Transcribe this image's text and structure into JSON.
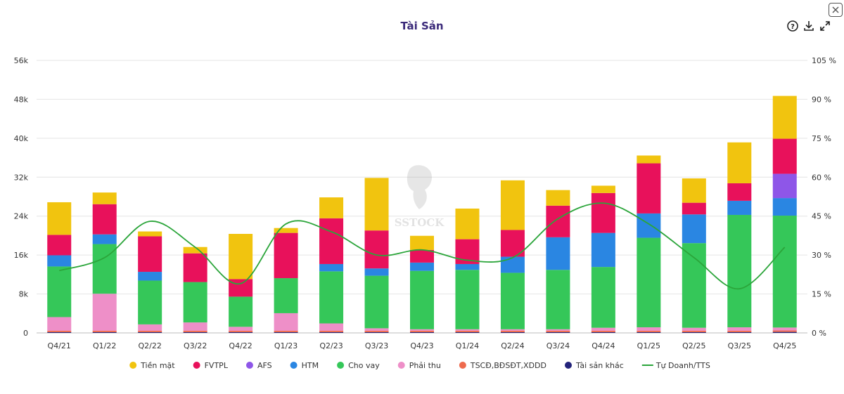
{
  "title": "Tài Sản",
  "watermark": "SSTOCK",
  "toolbar": {
    "help_icon": "help-icon",
    "download_icon": "download-icon",
    "fullscreen_icon": "fullscreen-icon"
  },
  "colors": {
    "tien_mat": "#f1c40f",
    "fvtpl": "#e8115b",
    "afs": "#8e56e8",
    "htm": "#2a86e2",
    "cho_vay": "#35c759",
    "phai_thu": "#ee8fc8",
    "tscd": "#ee6a4d",
    "tai_san_khac": "#23237a",
    "line": "#2ba53a"
  },
  "chart_data": {
    "type": "bar",
    "stacked": true,
    "title": "Tài Sản",
    "categories": [
      "Q4/21",
      "Q1/22",
      "Q2/22",
      "Q3/22",
      "Q4/22",
      "Q1/23",
      "Q2/23",
      "Q3/23",
      "Q4/23",
      "Q1/24",
      "Q2/24",
      "Q3/24",
      "Q4/24",
      "Q1/25",
      "Q2/25",
      "Q3/25",
      "Q4/25"
    ],
    "y_left": {
      "min": 0,
      "max": 56000,
      "ticks": [
        "0",
        "8k",
        "16k",
        "24k",
        "32k",
        "40k",
        "48k",
        "56k"
      ]
    },
    "y_right": {
      "min": 0,
      "max": 105,
      "ticks": [
        "0 %",
        "15 %",
        "30 %",
        "45 %",
        "60 %",
        "75 %",
        "90 %",
        "105 %"
      ]
    },
    "series": [
      {
        "name": "Tài sản khác",
        "key": "tai_san_khac",
        "values": [
          150,
          150,
          150,
          150,
          150,
          150,
          150,
          150,
          150,
          150,
          150,
          150,
          150,
          150,
          150,
          150,
          200
        ]
      },
      {
        "name": "TSCĐ,BĐSĐT,XDDD",
        "key": "tscd",
        "values": [
          300,
          300,
          300,
          300,
          300,
          300,
          300,
          300,
          300,
          300,
          300,
          300,
          300,
          300,
          300,
          300,
          300
        ]
      },
      {
        "name": "Phải thu",
        "key": "phai_thu",
        "values": [
          2800,
          7600,
          1300,
          1700,
          800,
          3600,
          1500,
          500,
          300,
          300,
          300,
          300,
          600,
          700,
          600,
          700,
          600
        ]
      },
      {
        "name": "Cho vay",
        "key": "cho_vay",
        "values": [
          10400,
          10200,
          9000,
          8300,
          6200,
          7200,
          10700,
          10800,
          12000,
          12200,
          11600,
          12200,
          12500,
          18400,
          17400,
          23100,
          23000
        ]
      },
      {
        "name": "HTM",
        "key": "htm",
        "values": [
          2300,
          2000,
          1800,
          0,
          0,
          0,
          1500,
          1500,
          1700,
          1200,
          3300,
          6700,
          7000,
          5000,
          5900,
          2900,
          3600
        ]
      },
      {
        "name": "AFS",
        "key": "afs",
        "values": [
          0,
          0,
          0,
          0,
          0,
          0,
          0,
          0,
          0,
          0,
          0,
          0,
          0,
          0,
          0,
          0,
          5000
        ]
      },
      {
        "name": "FVTPL",
        "key": "fvtpl",
        "values": [
          4200,
          6200,
          7300,
          5900,
          3600,
          9300,
          9400,
          7800,
          2600,
          5100,
          5500,
          6500,
          8200,
          10300,
          2400,
          3600,
          7200
        ]
      },
      {
        "name": "Tiền mặt",
        "key": "tien_mat",
        "values": [
          6700,
          2400,
          1000,
          1300,
          9300,
          1000,
          4300,
          10800,
          2900,
          6300,
          10200,
          3200,
          1500,
          1600,
          5000,
          8400,
          8800
        ]
      }
    ],
    "legend_order": [
      "Tiền mặt",
      "FVTPL",
      "AFS",
      "HTM",
      "Cho vay",
      "Phải thu",
      "TSCĐ,BĐSĐT,XDDD",
      "Tài sản khác",
      "Tự Doanh/TTS"
    ],
    "line_series": {
      "name": "Tự Doanh/TTS",
      "axis": "right",
      "values": [
        24,
        29,
        43,
        33,
        19,
        42,
        39,
        30,
        32,
        28,
        29,
        44,
        50,
        42,
        29,
        17,
        33
      ]
    },
    "legend_position": "bottom",
    "grid": true
  }
}
